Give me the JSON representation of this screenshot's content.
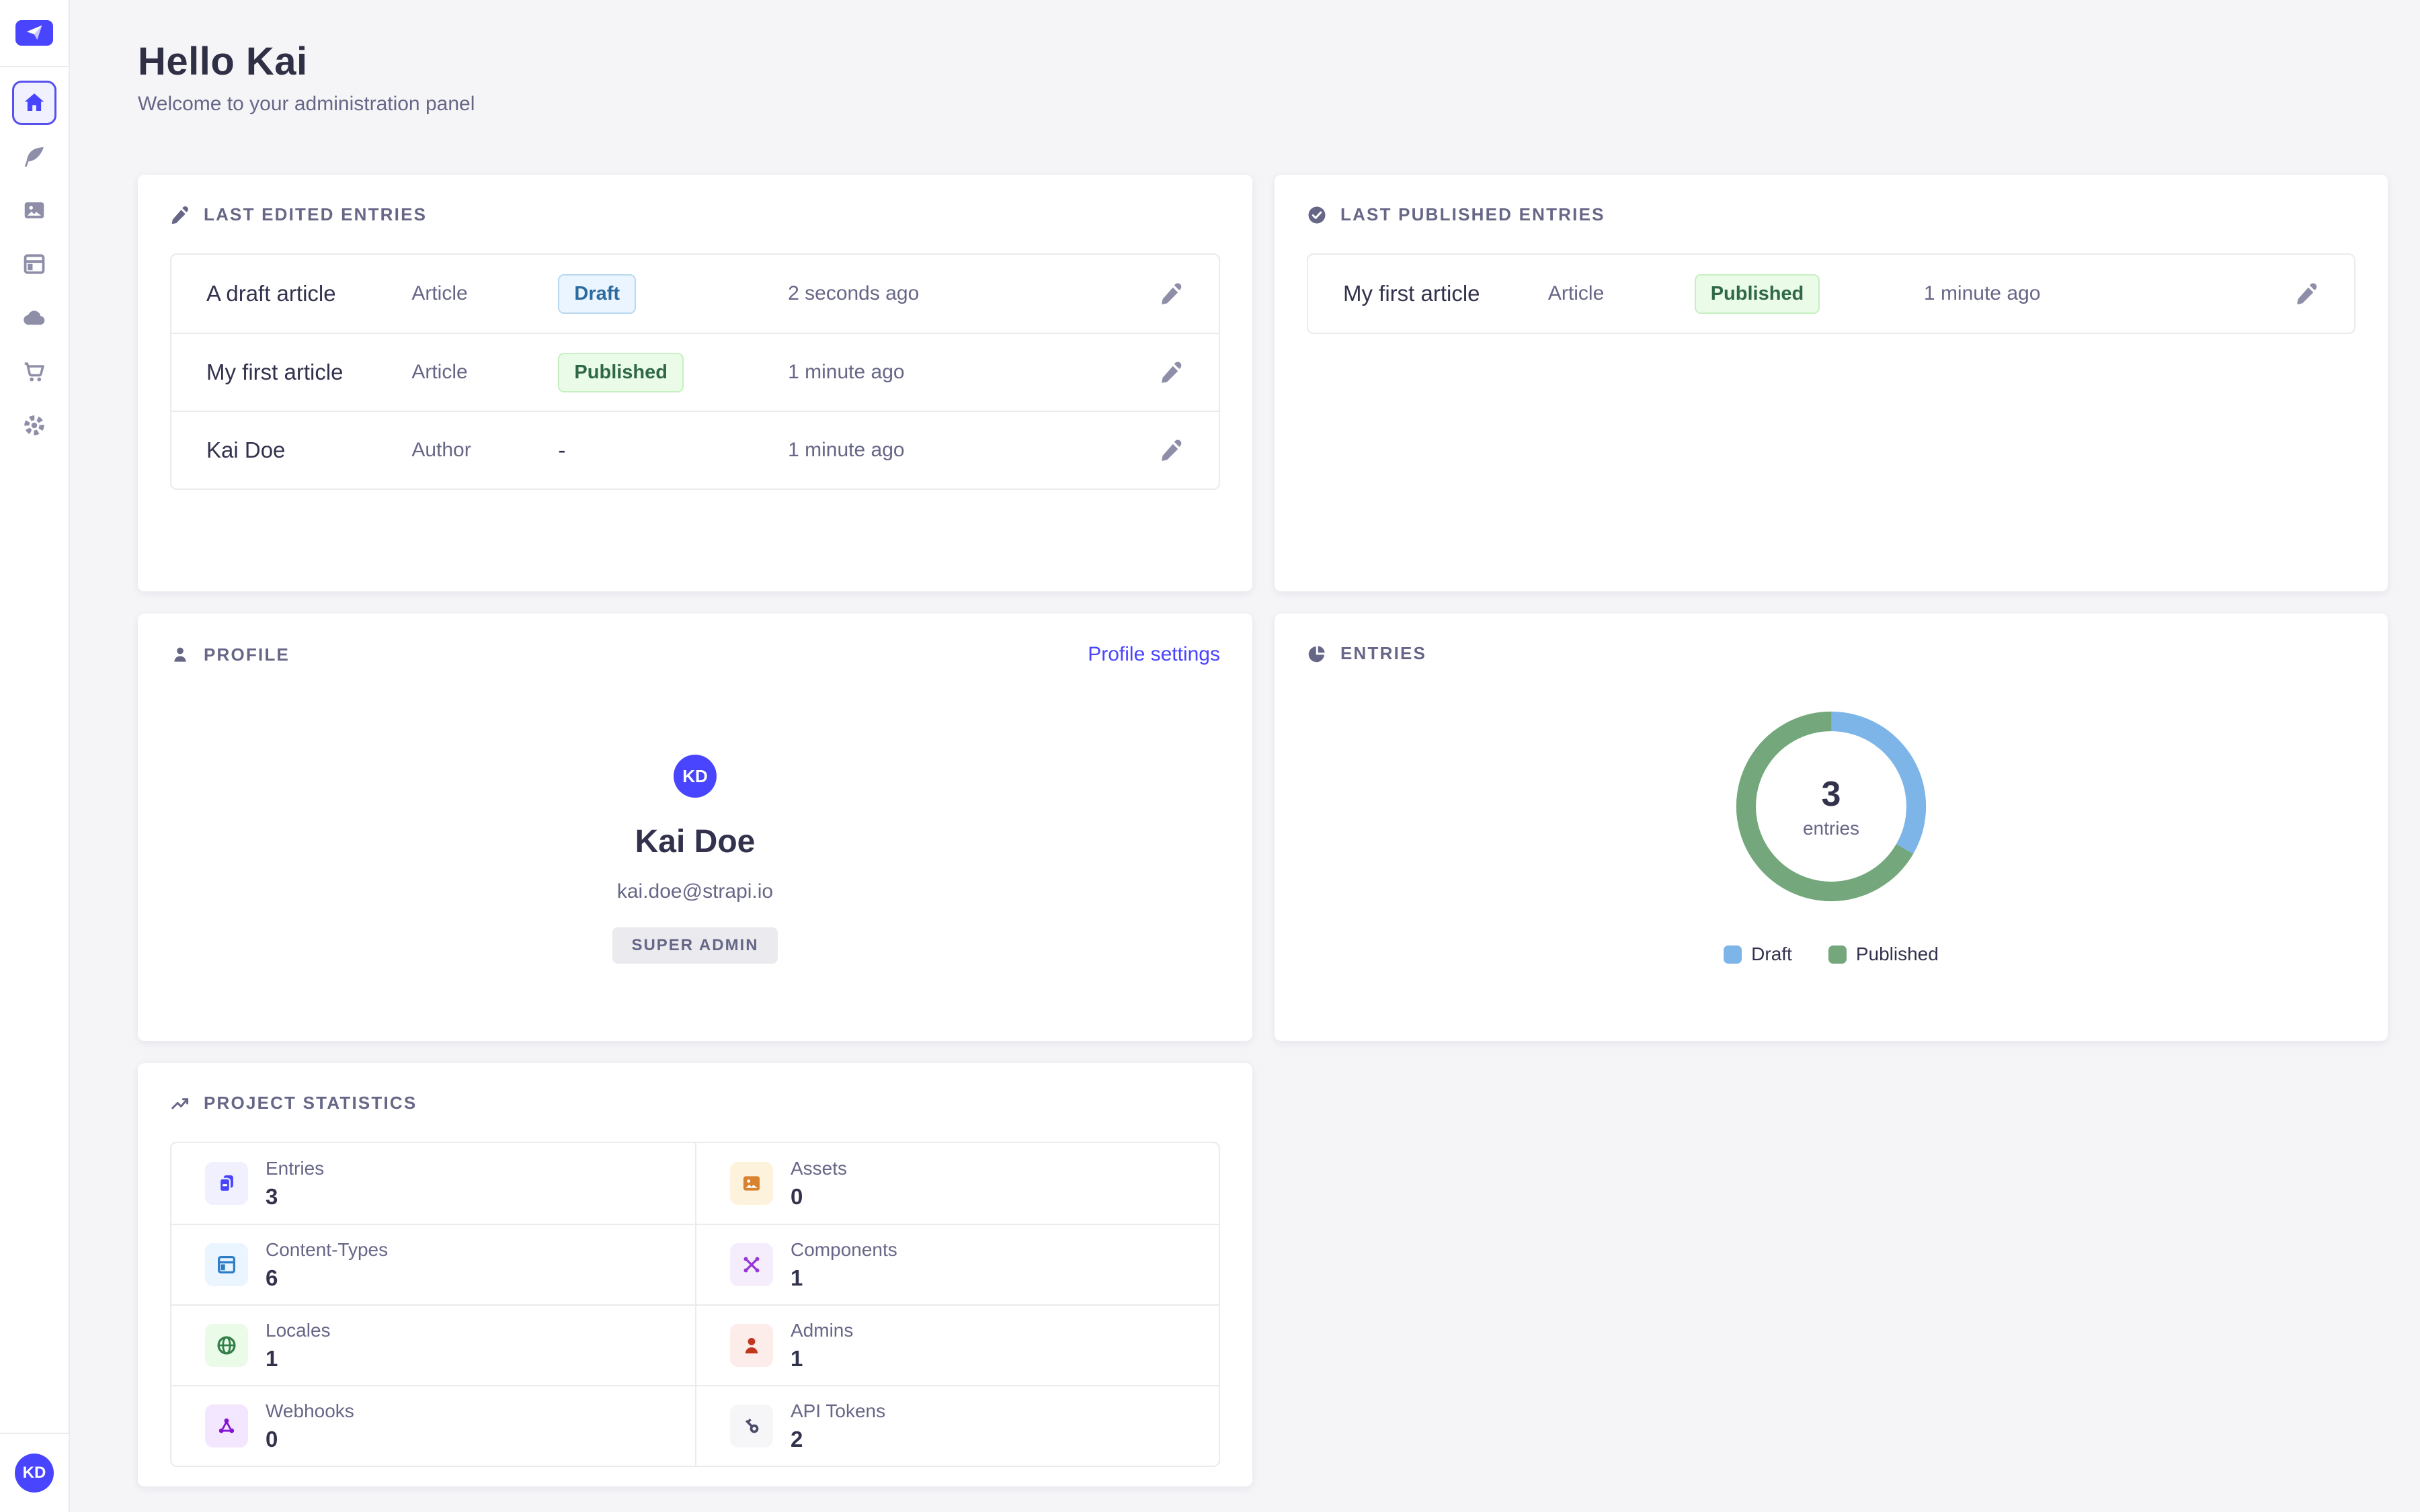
{
  "colors": {
    "accent": "#4945ff",
    "draft_bg": "#eaf5ff",
    "draft_text": "#2c6b9e",
    "published_bg": "#eafbe7",
    "published_text": "#2f6846",
    "text_dark": "#32324d",
    "text_muted": "#666687"
  },
  "sidebar": {
    "logo_icon": "strapi-logo",
    "icons": [
      "home",
      "content-manager-feather",
      "media-library-pictures",
      "content-type-builder-layout",
      "cloud",
      "marketplace-cart",
      "settings-gear"
    ],
    "avatar_initials": "KD"
  },
  "header": {
    "title": "Hello Kai",
    "subtitle": "Welcome to your administration panel"
  },
  "last_edited": {
    "title": "LAST EDITED ENTRIES",
    "rows": [
      {
        "name": "A draft article",
        "type": "Article",
        "status": "Draft",
        "status_kind": "draft",
        "time": "2 seconds ago"
      },
      {
        "name": "My first article",
        "type": "Article",
        "status": "Published",
        "status_kind": "published",
        "time": "1 minute ago"
      },
      {
        "name": "Kai Doe",
        "type": "Author",
        "status": "-",
        "status_kind": "none",
        "time": "1 minute ago"
      }
    ]
  },
  "last_published": {
    "title": "LAST PUBLISHED ENTRIES",
    "rows": [
      {
        "name": "My first article",
        "type": "Article",
        "status": "Published",
        "status_kind": "published",
        "time": "1 minute ago"
      }
    ]
  },
  "profile": {
    "title": "PROFILE",
    "settings_link": "Profile settings",
    "initials": "KD",
    "name": "Kai Doe",
    "email": "kai.doe@strapi.io",
    "role_badge": "SUPER ADMIN"
  },
  "entries_card": {
    "title": "ENTRIES"
  },
  "chart_data": {
    "type": "pie",
    "variant": "donut",
    "categories": [
      "Draft",
      "Published"
    ],
    "values": [
      1,
      2
    ],
    "colors": [
      "#7db5e8",
      "#74a87c"
    ],
    "center_value": "3",
    "center_label": "entries",
    "legend_position": "bottom"
  },
  "stats": {
    "title": "PROJECT STATISTICS",
    "items": [
      {
        "label": "Entries",
        "value": "3",
        "icon": "documents-icon"
      },
      {
        "label": "Assets",
        "value": "0",
        "icon": "picture-icon"
      },
      {
        "label": "Content-Types",
        "value": "6",
        "icon": "layout-icon"
      },
      {
        "label": "Components",
        "value": "1",
        "icon": "puzzle-x-icon"
      },
      {
        "label": "Locales",
        "value": "1",
        "icon": "globe-icon"
      },
      {
        "label": "Admins",
        "value": "1",
        "icon": "user-icon"
      },
      {
        "label": "Webhooks",
        "value": "0",
        "icon": "webhook-icon"
      },
      {
        "label": "API Tokens",
        "value": "2",
        "icon": "key-icon"
      }
    ]
  }
}
